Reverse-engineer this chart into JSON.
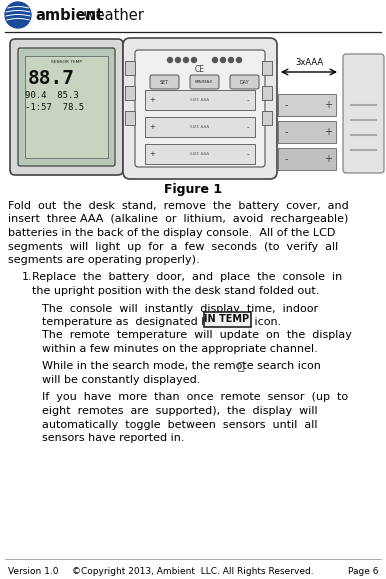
{
  "title": "Figure 1",
  "header_bold": "ambient",
  "header_regular": " weather",
  "bg_color": "#ffffff",
  "text_color": "#000000",
  "fig_width": 3.86,
  "fig_height": 5.79,
  "dpi": 100,
  "p1_lines": [
    "Fold  out  the  desk  stand,  remove  the  battery  cover,  and",
    "insert  three AAA  (alkaline  or  lithium,  avoid  rechargeable)",
    "batteries in the back of the display console.  All of the LCD",
    "segments  will  light  up  for  a  few  seconds  (to  verify  all",
    "segments are operating properly)."
  ],
  "item1_lines": [
    "Replace  the  battery  door,  and  place  the  console  in",
    "the upright position with the desk stand folded out."
  ],
  "sub1_line1": "The  console  will  instantly  display  time,  indoor",
  "sub1_line2": "temperature as  designated by the",
  "sub1_line3": " icon.",
  "sub1_line4": "The  remote  temperature  will  update  on  the  display",
  "sub1_line5": "within a few minutes on the appropriate channel.",
  "sub2_line1": "While in the search mode, the remote search icon",
  "sub2_line2": "will be constantly displayed.",
  "sub3_lines": [
    "If  you  have  more  than  once  remote  sensor  (up  to",
    "eight  remotes  are  supported),  the  display  will",
    "automatically  toggle  between  sensors  until  all",
    "sensors have reported in."
  ],
  "footer_v": "Version 1.0",
  "footer_c": "©Copyright 2013, Ambient  LLC. All Rights Reserved.",
  "footer_p": "Page 6",
  "intemp_label": "IN TEMP"
}
